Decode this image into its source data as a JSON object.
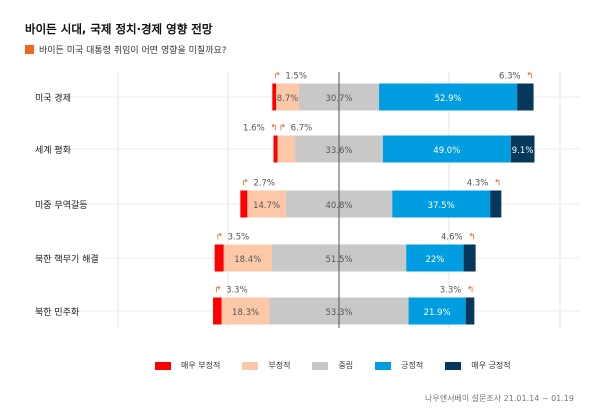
{
  "title": "바이든 시대, 국제 정치·경제 영향 전망",
  "subtitle": "바이든 미국 대통령 취임이 어떤 영향을 미칠까요?",
  "source": "나우앤서베이 설문조사 21.01.14 ~ 01.19",
  "chart_data": {
    "type": "bar",
    "orientation": "horizontal",
    "stacked": "diverging",
    "categories": [
      "미국 경제",
      "세계 평화",
      "미중 무역갈등",
      "북한 핵무기 해결",
      "북한 민주화"
    ],
    "series": [
      {
        "name": "매우 부정적",
        "color": "#ff0000",
        "values": [
          1.5,
          1.6,
          2.7,
          3.5,
          3.3
        ]
      },
      {
        "name": "부정적",
        "color": "#fcc8a8",
        "values": [
          8.7,
          6.7,
          14.7,
          18.4,
          18.3
        ]
      },
      {
        "name": "중립",
        "color": "#c8c8c8",
        "values": [
          30.7,
          33.6,
          40.8,
          51.5,
          53.3
        ]
      },
      {
        "name": "긍정적",
        "color": "#009de0",
        "values": [
          52.9,
          49.0,
          37.5,
          22,
          21.9
        ]
      },
      {
        "name": "매우 긍정적",
        "color": "#05385a",
        "values": [
          6.3,
          9.1,
          4.3,
          4.6,
          3.3
        ]
      }
    ],
    "value_labels": [
      [
        "1.5%",
        "8.7%",
        "30.7%",
        "52.9%",
        "6.3%"
      ],
      [
        "1.6%",
        "6.7%",
        "33.6%",
        "49.0%",
        "9.1%"
      ],
      [
        "2.7%",
        "14.7%",
        "40.8%",
        "37.5%",
        "4.3%"
      ],
      [
        "3.5%",
        "18.4%",
        "51.5%",
        "22%",
        "4.6%"
      ],
      [
        "3.3%",
        "18.3%",
        "53.3%",
        "21.9%",
        "3.3%"
      ]
    ],
    "legend_position": "bottom",
    "grid": true,
    "accent_color": "#f26522"
  }
}
